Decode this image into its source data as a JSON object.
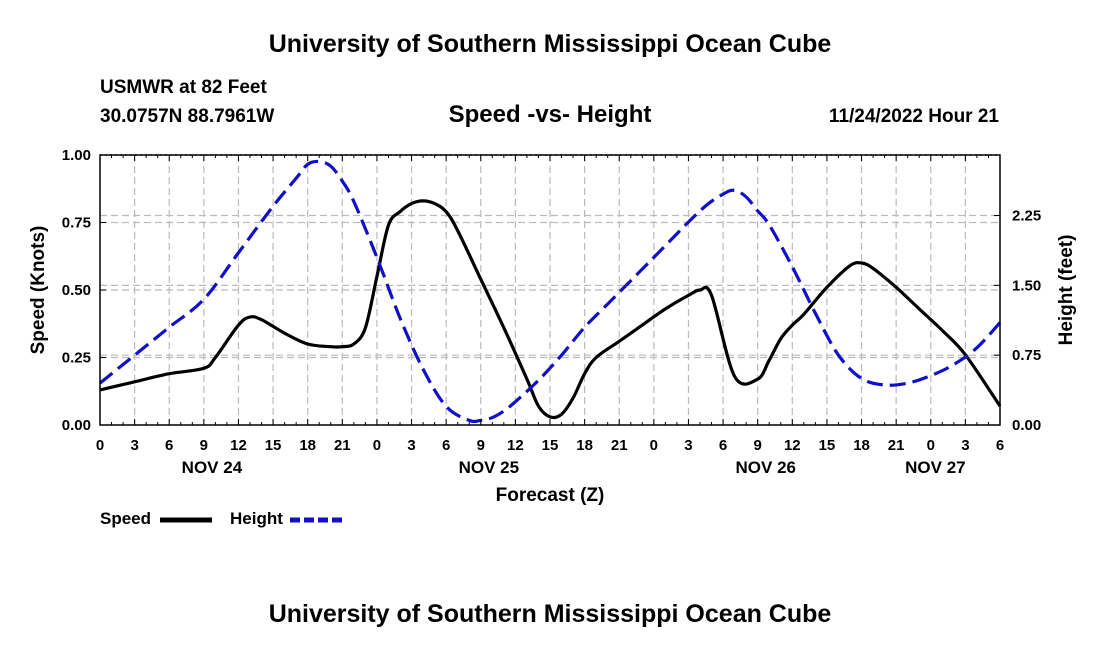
{
  "page_title_top": "University of Southern Mississippi Ocean Cube",
  "page_title_bottom": "University of Southern Mississippi Ocean Cube",
  "station": {
    "name": "USMWR at 82 Feet",
    "coords": "30.0757N  88.7961W"
  },
  "chart_title": "Speed -vs- Height",
  "timestamp": "11/24/2022 Hour 21",
  "colors": {
    "speed": "#000000",
    "height": "#1010c8",
    "grid": "#bbbbbb"
  },
  "legend": {
    "speed_label": "Speed",
    "height_label": "Height"
  },
  "chart_data": {
    "type": "line",
    "title": "Speed -vs- Height",
    "xlabel": "Forecast (Z)",
    "ylabel": "Speed (Knots)",
    "y2label": "Height (feet)",
    "x_range": [
      0,
      78
    ],
    "ylim": [
      0,
      1.0
    ],
    "y2lim": [
      0,
      2.9
    ],
    "x_ticks": [
      0,
      3,
      6,
      9,
      12,
      15,
      18,
      21,
      24,
      27,
      30,
      33,
      36,
      39,
      42,
      45,
      48,
      51,
      54,
      57,
      60,
      63,
      66,
      69,
      72,
      75,
      78
    ],
    "x_tick_labels": [
      "0",
      "3",
      "6",
      "9",
      "12",
      "15",
      "18",
      "21",
      "0",
      "3",
      "6",
      "9",
      "12",
      "15",
      "18",
      "21",
      "0",
      "3",
      "6",
      "9",
      "12",
      "15",
      "18",
      "21",
      "0",
      "3",
      "6"
    ],
    "y_ticks": [
      0,
      0.25,
      0.5,
      0.75,
      1.0
    ],
    "y_tick_labels": [
      "0.00",
      "0.25",
      "0.50",
      "0.75",
      "1.00"
    ],
    "y2_ticks": [
      0,
      0.75,
      1.5,
      2.25
    ],
    "y2_tick_labels": [
      "0.00",
      "0.75",
      "1.50",
      "2.25"
    ],
    "day_labels": [
      {
        "x": 9.7,
        "label": "NOV 24"
      },
      {
        "x": 33.7,
        "label": "NOV 25"
      },
      {
        "x": 57.7,
        "label": "NOV 26"
      },
      {
        "x": 72.4,
        "label": "NOV 27"
      }
    ],
    "series": [
      {
        "name": "Speed",
        "axis": "left",
        "style": "solid",
        "x": [
          0,
          3,
          6,
          9,
          10,
          12,
          13,
          14,
          16,
          18,
          20,
          21,
          22,
          23,
          24,
          25,
          26,
          27,
          28,
          29,
          30,
          31,
          33,
          35,
          37,
          38,
          39,
          40,
          41,
          42,
          43,
          45,
          47,
          49,
          51,
          52,
          53,
          55,
          57,
          58,
          59,
          60,
          61,
          63,
          65,
          66,
          67,
          69,
          71,
          73,
          75,
          78
        ],
        "values": [
          0.13,
          0.16,
          0.19,
          0.21,
          0.25,
          0.37,
          0.4,
          0.39,
          0.34,
          0.3,
          0.29,
          0.29,
          0.3,
          0.36,
          0.55,
          0.74,
          0.79,
          0.82,
          0.83,
          0.82,
          0.79,
          0.72,
          0.54,
          0.36,
          0.17,
          0.07,
          0.03,
          0.04,
          0.1,
          0.19,
          0.25,
          0.31,
          0.37,
          0.43,
          0.48,
          0.5,
          0.48,
          0.18,
          0.17,
          0.24,
          0.32,
          0.37,
          0.41,
          0.51,
          0.59,
          0.6,
          0.58,
          0.51,
          0.43,
          0.35,
          0.26,
          0.07
        ]
      },
      {
        "name": "Height",
        "axis": "right",
        "style": "dashed",
        "x": [
          0,
          3,
          6,
          9,
          12,
          15,
          17,
          18,
          19,
          20,
          21,
          22,
          24,
          26,
          28,
          30,
          32,
          33,
          34,
          35,
          36,
          38,
          40,
          42,
          44,
          48,
          52,
          54,
          55,
          56,
          57,
          58,
          60,
          62,
          64,
          66,
          68,
          70,
          72,
          74,
          76,
          78
        ],
        "values": [
          0.45,
          0.75,
          1.05,
          1.35,
          1.85,
          2.35,
          2.65,
          2.8,
          2.83,
          2.78,
          2.62,
          2.4,
          1.8,
          1.15,
          0.6,
          0.2,
          0.05,
          0.05,
          0.08,
          0.15,
          0.25,
          0.48,
          0.75,
          1.05,
          1.3,
          1.8,
          2.3,
          2.48,
          2.52,
          2.45,
          2.3,
          2.15,
          1.7,
          1.2,
          0.75,
          0.5,
          0.43,
          0.45,
          0.53,
          0.65,
          0.83,
          1.1
        ]
      }
    ]
  }
}
